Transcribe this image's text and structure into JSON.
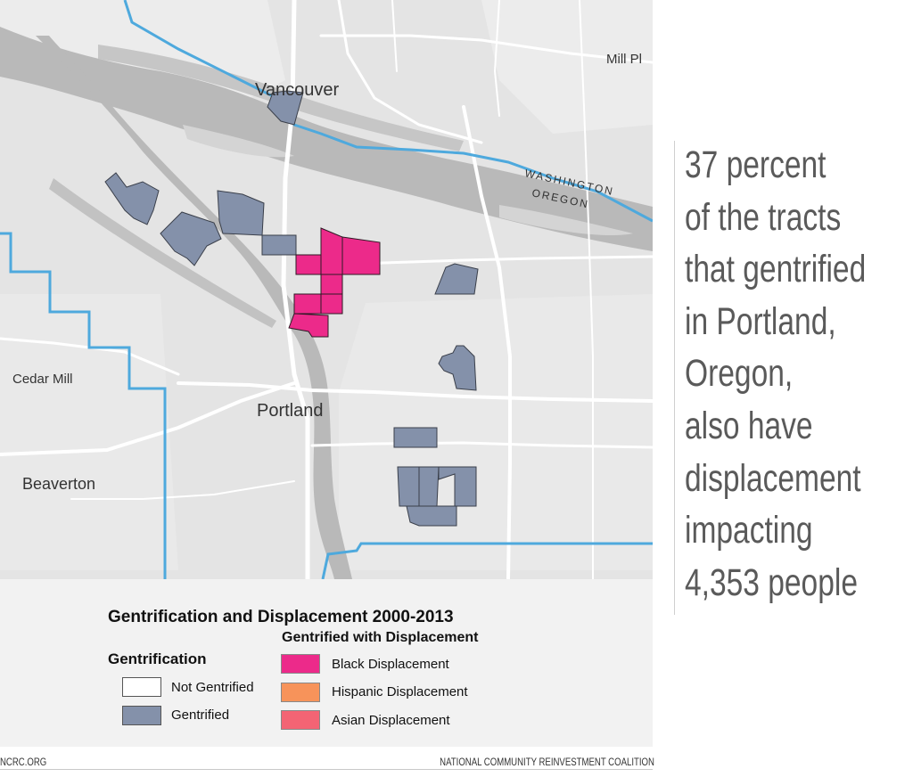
{
  "map": {
    "places": {
      "vancouver": "Vancouver",
      "mill_plain": "Mill Pl",
      "cedar_mill": "Cedar Mill",
      "portland": "Portland",
      "beaverton": "Beaverton",
      "washington": "WASHINGTON",
      "oregon": "OREGON"
    },
    "colors": {
      "water": "#b9b9b9",
      "land": "#e3e3e3",
      "roads": "#ffffff",
      "state_border": "#4ea9dd",
      "gentrified": "#8491aa",
      "black_displacement": "#ec2a8a",
      "hispanic_displacement": "#f7935a",
      "asian_displacement": "#f36474"
    }
  },
  "legend": {
    "title": "Gentrification and Displacement 2000-2013",
    "gentrification_heading": "Gentrification",
    "displacement_heading": "Gentrified with Displacement",
    "not_gentrified": "Not Gentrified",
    "gentrified": "Gentrified",
    "black": "Black Displacement",
    "hispanic": "Hispanic Displacement",
    "asian": "Asian Displacement"
  },
  "headline": [
    "37 percent",
    "of the tracts",
    "that gentrified",
    "in Portland,",
    "Oregon,",
    "also have",
    "displacement",
    "impacting",
    "4,353 people"
  ],
  "footer": {
    "left": "NCRC.ORG",
    "right": "NATIONAL COMMUNITY REINVESTMENT COALITION"
  }
}
